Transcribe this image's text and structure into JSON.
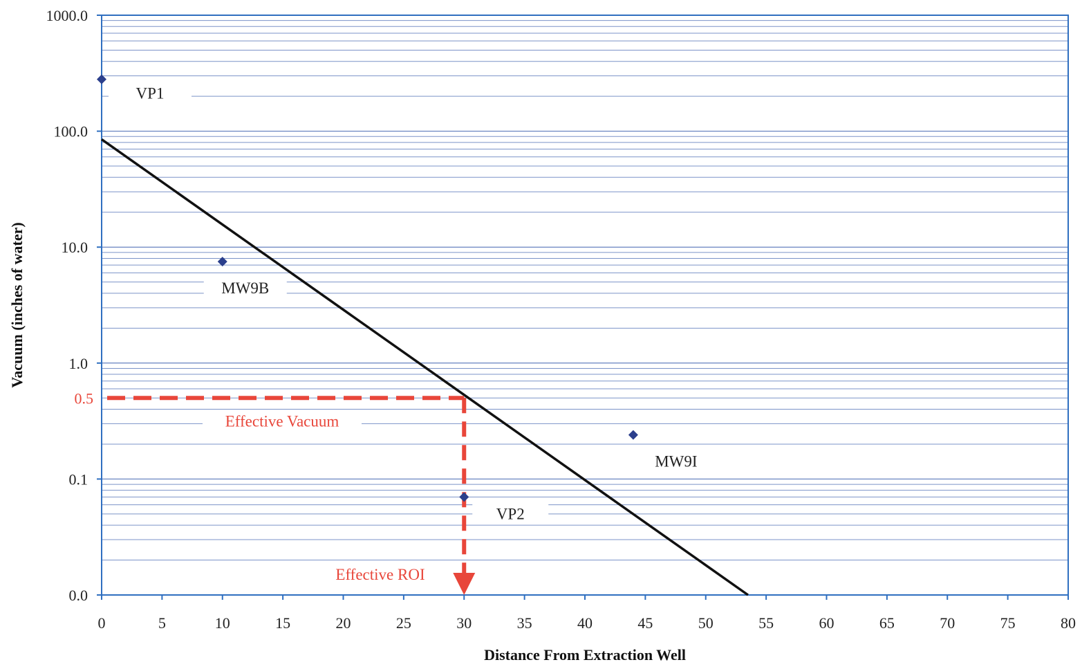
{
  "chart_data": {
    "type": "scatter",
    "title": "",
    "xlabel": "Distance From Extraction Well",
    "ylabel": "Vacuum (inches of water)",
    "xlim": [
      0,
      80
    ],
    "x_ticks": [
      "0",
      "5",
      "10",
      "15",
      "20",
      "25",
      "30",
      "35",
      "40",
      "45",
      "50",
      "55",
      "60",
      "65",
      "70",
      "75",
      "80"
    ],
    "y_scale": "log",
    "y_ticks": [
      {
        "value": 1000,
        "label": "1000.0"
      },
      {
        "value": 100,
        "label": "100.0"
      },
      {
        "value": 10,
        "label": "10.0"
      },
      {
        "value": 1,
        "label": "1.0"
      },
      {
        "value": 0.1,
        "label": "0.1"
      },
      {
        "value": 0.01,
        "label": "0.0"
      }
    ],
    "ylim": [
      0.01,
      1000
    ],
    "grid": "horizontal minor log gridlines",
    "points": [
      {
        "name": "VP1",
        "x": 0,
        "y": 280
      },
      {
        "name": "MW9B",
        "x": 10,
        "y": 7.5
      },
      {
        "name": "MW9I",
        "x": 44,
        "y": 0.24
      },
      {
        "name": "VP2",
        "x": 30,
        "y": 0.07
      }
    ],
    "trend_line": {
      "x": [
        0,
        53.5
      ],
      "y": [
        85,
        0.01
      ]
    },
    "effective_vacuum": {
      "value": 0.5,
      "tick_label": "0.5",
      "label": "Effective Vacuum"
    },
    "effective_roi": {
      "value": 30,
      "label": "Effective ROI"
    },
    "colors": {
      "points": "#2b3f8c",
      "trend": "#111111",
      "annotation": "#e8463a",
      "grid": "#4f6fb5",
      "frame": "#2f6fc0"
    }
  }
}
